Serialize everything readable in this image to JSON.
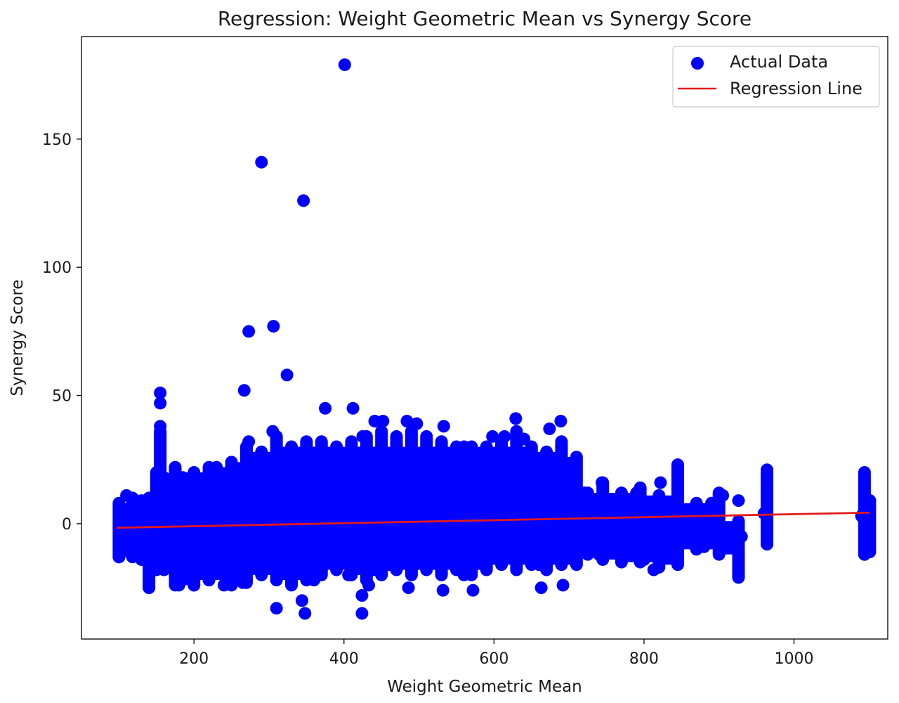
{
  "chart_data": {
    "type": "scatter",
    "title": "Regression: Weight Geometric Mean vs Synergy Score",
    "xlabel": "Weight Geometric Mean",
    "ylabel": "Synergy Score",
    "xlim": [
      50,
      1125
    ],
    "ylim": [
      -45,
      190
    ],
    "x_ticks": [
      200,
      400,
      600,
      800,
      1000
    ],
    "y_ticks": [
      0,
      50,
      100,
      150
    ],
    "grid": false,
    "legend_position": "top-right",
    "colors": {
      "scatter": "#0000ff",
      "regression": "#e31a1c"
    },
    "series": [
      {
        "name": "Actual Data",
        "type": "scatter",
        "points": [
          [
            401,
            179
          ],
          [
            290,
            141
          ],
          [
            346,
            126
          ],
          [
            306,
            77
          ],
          [
            273,
            75
          ],
          [
            324,
            58
          ],
          [
            267,
            52
          ],
          [
            155,
            51
          ],
          [
            155,
            47
          ],
          [
            375,
            45
          ],
          [
            412,
            45
          ],
          [
            629,
            41
          ],
          [
            441,
            40
          ],
          [
            452,
            40
          ],
          [
            484,
            40
          ],
          [
            689,
            40
          ],
          [
            497,
            39
          ],
          [
            155,
            38
          ],
          [
            674,
            37
          ],
          [
            533,
            38
          ],
          [
            305,
            36
          ],
          [
            425,
            34
          ],
          [
            598,
            34
          ],
          [
            614,
            34
          ],
          [
            273,
            32
          ],
          [
            640,
            33
          ],
          [
            845,
            23
          ],
          [
            964,
            21
          ],
          [
            1094,
            20
          ],
          [
            964,
            16
          ],
          [
            1094,
            16
          ],
          [
            822,
            16
          ],
          [
            744,
            16
          ],
          [
            926,
            9
          ],
          [
            1101,
            9
          ],
          [
            155,
            22
          ],
          [
            185,
            18
          ],
          [
            230,
            22
          ],
          [
            350,
            28
          ],
          [
            560,
            30
          ],
          [
            720,
            12
          ],
          [
            790,
            12
          ],
          [
            870,
            7
          ],
          [
            905,
            11
          ],
          [
            110,
            11
          ],
          [
            100,
            6
          ],
          [
            130,
            8
          ],
          [
            180,
            -5
          ],
          [
            220,
            -10
          ],
          [
            280,
            -15
          ],
          [
            330,
            -20
          ],
          [
            380,
            -12
          ],
          [
            440,
            -18
          ],
          [
            500,
            -14
          ],
          [
            560,
            -16
          ],
          [
            620,
            -10
          ],
          [
            680,
            -12
          ],
          [
            720,
            -8
          ],
          [
            770,
            -10
          ],
          [
            800,
            -14
          ],
          [
            840,
            -12
          ],
          [
            880,
            -9
          ],
          [
            926,
            -20
          ],
          [
            926,
            -15
          ],
          [
            1094,
            -12
          ],
          [
            1101,
            -10
          ],
          [
            964,
            -8
          ],
          [
            140,
            -25
          ],
          [
            180,
            -24
          ],
          [
            200,
            -24
          ],
          [
            240,
            -24
          ],
          [
            265,
            -23
          ],
          [
            310,
            -33
          ],
          [
            344,
            -30
          ],
          [
            348,
            -35
          ],
          [
            406,
            -20
          ],
          [
            424,
            -28
          ],
          [
            433,
            -24
          ],
          [
            424,
            -35
          ],
          [
            486,
            -25
          ],
          [
            532,
            -26
          ],
          [
            572,
            -26
          ],
          [
            663,
            -25
          ],
          [
            692,
            -24
          ],
          [
            813,
            -18
          ],
          [
            100,
            -13
          ],
          [
            130,
            -10
          ],
          [
            160,
            -12
          ],
          [
            200,
            -8
          ],
          [
            250,
            -6
          ],
          [
            300,
            -4
          ],
          [
            350,
            -2
          ],
          [
            400,
            0
          ],
          [
            450,
            2
          ],
          [
            500,
            4
          ],
          [
            550,
            6
          ],
          [
            600,
            8
          ],
          [
            650,
            10
          ],
          [
            700,
            6
          ],
          [
            750,
            2
          ],
          [
            820,
            0
          ],
          [
            860,
            -2
          ],
          [
            900,
            2
          ],
          [
            960,
            4
          ],
          [
            1090,
            3
          ],
          [
            1100,
            -3
          ],
          [
            120,
            2
          ],
          [
            170,
            10
          ],
          [
            210,
            14
          ],
          [
            260,
            18
          ],
          [
            320,
            20
          ],
          [
            370,
            22
          ],
          [
            420,
            24
          ],
          [
            470,
            26
          ],
          [
            520,
            24
          ],
          [
            580,
            20
          ],
          [
            640,
            18
          ],
          [
            700,
            16
          ],
          [
            160,
            -18
          ],
          [
            260,
            -20
          ],
          [
            360,
            -22
          ],
          [
            460,
            -16
          ],
          [
            560,
            -20
          ],
          [
            660,
            -16
          ],
          [
            740,
            -12
          ],
          [
            780,
            4
          ],
          [
            830,
            6
          ],
          [
            890,
            8
          ],
          [
            930,
            -5
          ]
        ],
        "band_segments": [
          [
            100,
            -13,
            8
          ],
          [
            118,
            -13,
            10
          ],
          [
            130,
            -14,
            9
          ],
          [
            140,
            -25,
            10
          ],
          [
            150,
            -18,
            20
          ],
          [
            155,
            -15,
            36
          ],
          [
            160,
            -16,
            18
          ],
          [
            175,
            -24,
            22
          ],
          [
            200,
            -24,
            20
          ],
          [
            220,
            -22,
            22
          ],
          [
            250,
            -24,
            24
          ],
          [
            270,
            -23,
            30
          ],
          [
            290,
            -20,
            28
          ],
          [
            310,
            -22,
            34
          ],
          [
            330,
            -24,
            30
          ],
          [
            350,
            -22,
            32
          ],
          [
            370,
            -20,
            32
          ],
          [
            390,
            -18,
            30
          ],
          [
            410,
            -20,
            32
          ],
          [
            430,
            -22,
            34
          ],
          [
            450,
            -20,
            36
          ],
          [
            470,
            -18,
            34
          ],
          [
            490,
            -20,
            36
          ],
          [
            510,
            -18,
            34
          ],
          [
            530,
            -20,
            32
          ],
          [
            550,
            -18,
            30
          ],
          [
            570,
            -20,
            30
          ],
          [
            590,
            -18,
            30
          ],
          [
            610,
            -16,
            32
          ],
          [
            630,
            -18,
            36
          ],
          [
            650,
            -16,
            30
          ],
          [
            670,
            -18,
            28
          ],
          [
            690,
            -16,
            32
          ],
          [
            710,
            -16,
            26
          ],
          [
            725,
            -12,
            12
          ],
          [
            745,
            -14,
            16
          ],
          [
            770,
            -15,
            12
          ],
          [
            795,
            -15,
            14
          ],
          [
            820,
            -17,
            11
          ],
          [
            845,
            -16,
            22
          ],
          [
            870,
            -10,
            8
          ],
          [
            900,
            -12,
            12
          ],
          [
            926,
            -21,
            1
          ],
          [
            964,
            -8,
            20
          ],
          [
            1094,
            -12,
            19
          ],
          [
            1101,
            -11,
            9
          ]
        ]
      },
      {
        "name": "Regression Line",
        "type": "line",
        "points": [
          [
            97,
            -1.6
          ],
          [
            1101,
            4.3
          ]
        ]
      }
    ]
  }
}
